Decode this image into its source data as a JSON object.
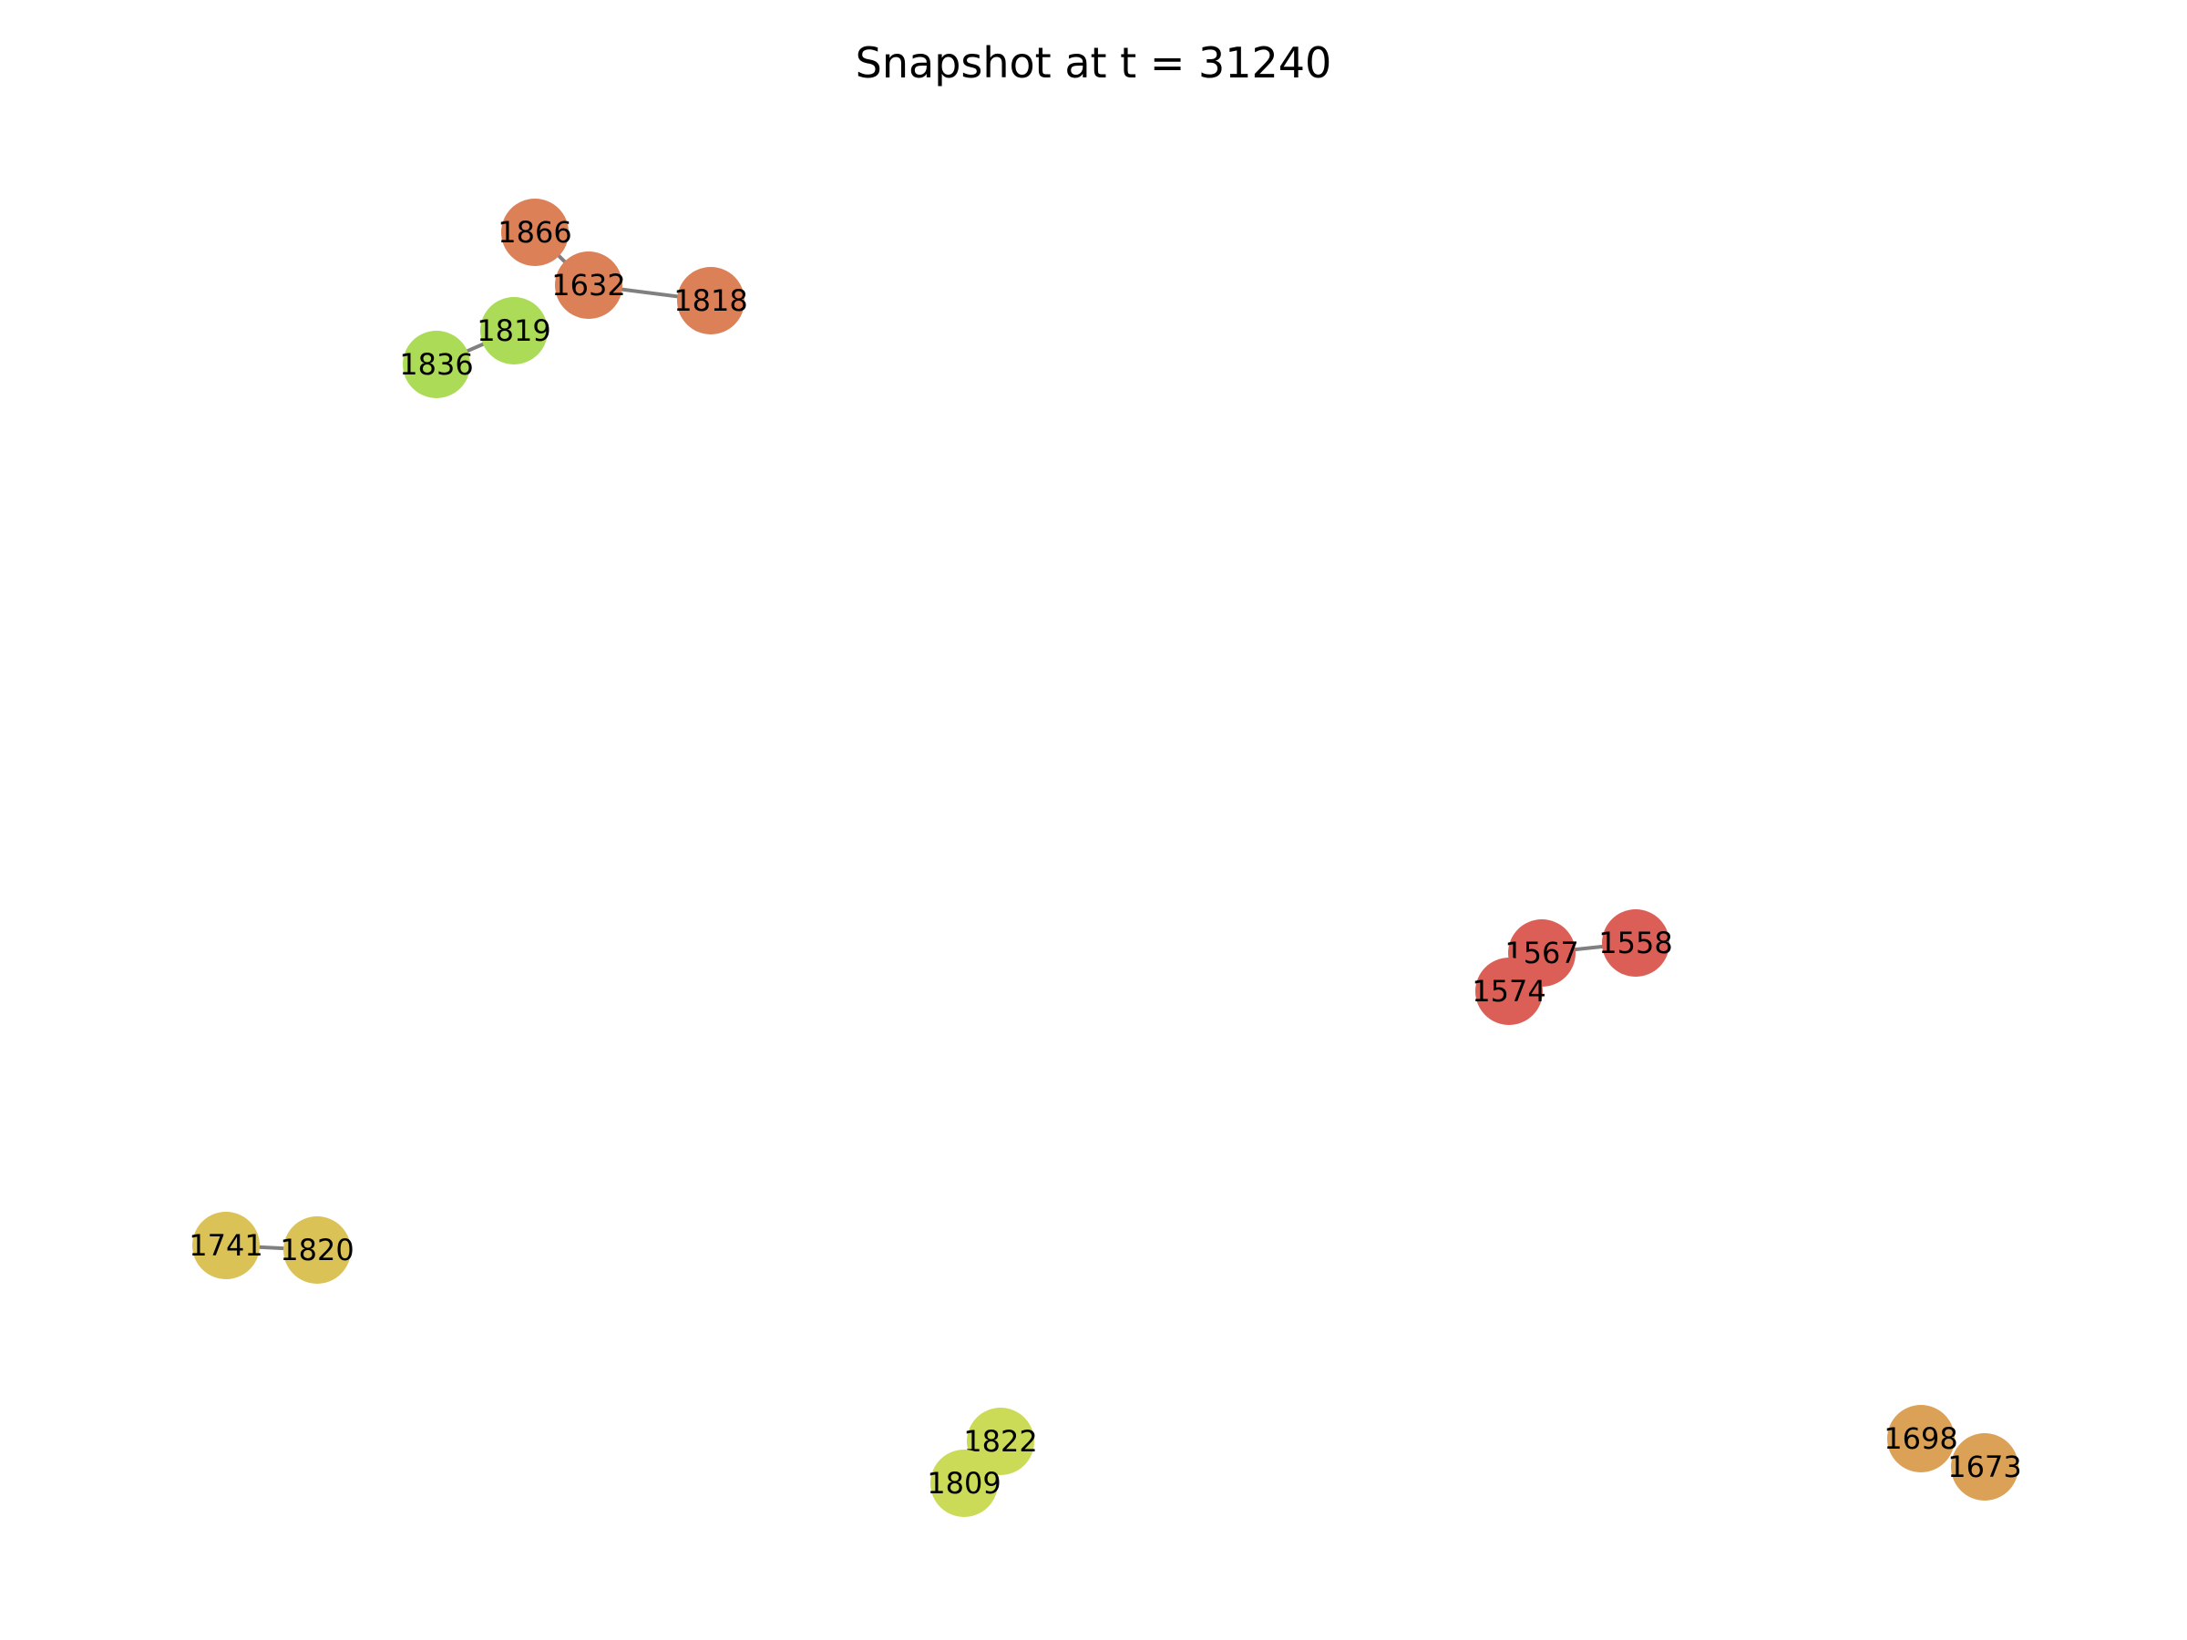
{
  "title": "Snapshot at t = 31240",
  "graph": {
    "nodes": [
      {
        "id": "1866",
        "color": "#db8057"
      },
      {
        "id": "1632",
        "color": "#db8057"
      },
      {
        "id": "1818",
        "color": "#db8057"
      },
      {
        "id": "1819",
        "color": "#acdb57"
      },
      {
        "id": "1836",
        "color": "#acdb57"
      },
      {
        "id": "1567",
        "color": "#db5f57"
      },
      {
        "id": "1558",
        "color": "#db5f57"
      },
      {
        "id": "1574",
        "color": "#db5f57"
      },
      {
        "id": "1741",
        "color": "#dbc257"
      },
      {
        "id": "1820",
        "color": "#dbc257"
      },
      {
        "id": "1822",
        "color": "#cbdb57"
      },
      {
        "id": "1809",
        "color": "#cbdb57"
      },
      {
        "id": "1698",
        "color": "#dba157"
      },
      {
        "id": "1673",
        "color": "#dba157"
      }
    ],
    "edges": [
      [
        "1866",
        "1632"
      ],
      [
        "1632",
        "1818"
      ],
      [
        "1819",
        "1836"
      ],
      [
        "1567",
        "1558"
      ],
      [
        "1741",
        "1820"
      ]
    ]
  }
}
